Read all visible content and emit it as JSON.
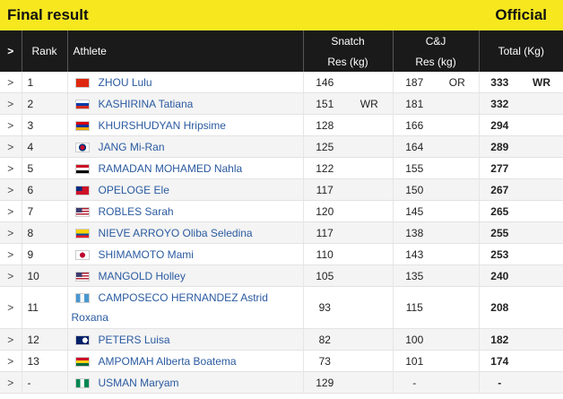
{
  "header": {
    "title": "Final result",
    "status": "Official"
  },
  "columns": {
    "chev": ">",
    "rank": "Rank",
    "athlete": "Athlete",
    "snatch": "Snatch",
    "snatch_sub": "Res (kg)",
    "cj": "C&J",
    "cj_sub": "Res (kg)",
    "total": "Total (Kg)"
  },
  "rows": [
    {
      "chev": ">",
      "rank": "1",
      "name": "ZHOU Lulu",
      "flag": "china-flag",
      "snatch": "146",
      "snatch_rec": "",
      "cj": "187",
      "cj_rec": "OR",
      "total": "333",
      "total_rec": "WR"
    },
    {
      "chev": ">",
      "rank": "2",
      "name": "KASHIRINA Tatiana",
      "flag": "russia-flag",
      "snatch": "151",
      "snatch_rec": "WR",
      "cj": "181",
      "cj_rec": "",
      "total": "332",
      "total_rec": ""
    },
    {
      "chev": ">",
      "rank": "3",
      "name": "KHURSHUDYAN Hripsime",
      "flag": "armenia-flag",
      "snatch": "128",
      "snatch_rec": "",
      "cj": "166",
      "cj_rec": "",
      "total": "294",
      "total_rec": ""
    },
    {
      "chev": ">",
      "rank": "4",
      "name": "JANG Mi-Ran",
      "flag": "korea-flag",
      "snatch": "125",
      "snatch_rec": "",
      "cj": "164",
      "cj_rec": "",
      "total": "289",
      "total_rec": ""
    },
    {
      "chev": ">",
      "rank": "5",
      "name": "RAMADAN MOHAMED Nahla",
      "flag": "egypt-flag",
      "snatch": "122",
      "snatch_rec": "",
      "cj": "155",
      "cj_rec": "",
      "total": "277",
      "total_rec": ""
    },
    {
      "chev": ">",
      "rank": "6",
      "name": "OPELOGE Ele",
      "flag": "samoa-flag",
      "snatch": "117",
      "snatch_rec": "",
      "cj": "150",
      "cj_rec": "",
      "total": "267",
      "total_rec": ""
    },
    {
      "chev": ">",
      "rank": "7",
      "name": "ROBLES Sarah",
      "flag": "usa-flag",
      "snatch": "120",
      "snatch_rec": "",
      "cj": "145",
      "cj_rec": "",
      "total": "265",
      "total_rec": ""
    },
    {
      "chev": ">",
      "rank": "8",
      "name": "NIEVE ARROYO Oliba Seledina",
      "flag": "ecuador-flag",
      "snatch": "117",
      "snatch_rec": "",
      "cj": "138",
      "cj_rec": "",
      "total": "255",
      "total_rec": ""
    },
    {
      "chev": ">",
      "rank": "9",
      "name": "SHIMAMOTO Mami",
      "flag": "japan-flag",
      "snatch": "110",
      "snatch_rec": "",
      "cj": "143",
      "cj_rec": "",
      "total": "253",
      "total_rec": ""
    },
    {
      "chev": ">",
      "rank": "10",
      "name": "MANGOLD Holley",
      "flag": "usa-flag",
      "snatch": "105",
      "snatch_rec": "",
      "cj": "135",
      "cj_rec": "",
      "total": "240",
      "total_rec": ""
    },
    {
      "chev": ">",
      "rank": "11",
      "name": "CAMPOSECO HERNANDEZ Astrid Roxana",
      "flag": "guatemala-flag",
      "snatch": "93",
      "snatch_rec": "",
      "cj": "115",
      "cj_rec": "",
      "total": "208",
      "total_rec": ""
    },
    {
      "chev": ">",
      "rank": "12",
      "name": "PETERS Luisa",
      "flag": "cook-islands-flag",
      "snatch": "82",
      "snatch_rec": "",
      "cj": "100",
      "cj_rec": "",
      "total": "182",
      "total_rec": ""
    },
    {
      "chev": ">",
      "rank": "13",
      "name": "AMPOMAH Alberta Boatema",
      "flag": "ghana-flag",
      "snatch": "73",
      "snatch_rec": "",
      "cj": "101",
      "cj_rec": "",
      "total": "174",
      "total_rec": ""
    },
    {
      "chev": ">",
      "rank": "-",
      "name": "USMAN Maryam",
      "flag": "nigeria-flag",
      "snatch": "129",
      "snatch_rec": "",
      "cj": "-",
      "cj_rec": "",
      "total": "-",
      "total_rec": ""
    }
  ]
}
